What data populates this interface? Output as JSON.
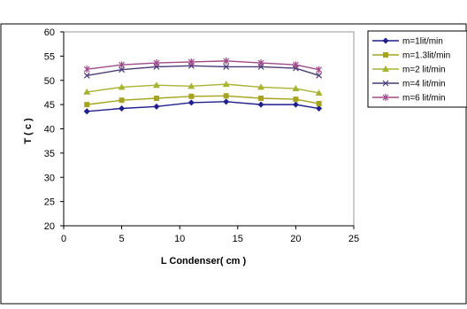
{
  "chart_data": {
    "type": "line",
    "title": "",
    "xlabel": "L  Condenser( cm )",
    "ylabel": "T ( c )",
    "xlim": [
      0,
      25
    ],
    "ylim": [
      20,
      60
    ],
    "x_ticks": [
      "0",
      "5",
      "10",
      "15",
      "20",
      "25"
    ],
    "y_ticks": [
      "20",
      "25",
      "30",
      "35",
      "40",
      "45",
      "50",
      "55",
      "60"
    ],
    "grid": false,
    "legend_position": "right",
    "x": [
      2,
      5,
      8,
      11,
      14,
      17,
      20,
      22
    ],
    "series": [
      {
        "name": "m=1lit/min",
        "color": "#1f1f8f",
        "marker": "diamond",
        "values": [
          43.6,
          44.2,
          44.6,
          45.4,
          45.6,
          45.0,
          45.0,
          44.2
        ]
      },
      {
        "name": "m=1.3lit/min",
        "color": "#a6a31e",
        "marker": "square",
        "values": [
          45.0,
          45.9,
          46.3,
          46.7,
          46.8,
          46.3,
          46.1,
          45.2
        ]
      },
      {
        "name": "m=2 lit/min",
        "color": "#a9b332",
        "marker": "triangle",
        "values": [
          47.6,
          48.6,
          49.0,
          48.8,
          49.2,
          48.6,
          48.3,
          47.4
        ]
      },
      {
        "name": "m=4 lit/min",
        "color": "#4a3a7a",
        "marker": "x",
        "values": [
          51.0,
          52.2,
          52.8,
          53.0,
          52.8,
          52.8,
          52.5,
          51.0
        ]
      },
      {
        "name": "m=6 lit/min",
        "color": "#a04a8a",
        "marker": "star",
        "values": [
          52.3,
          53.2,
          53.6,
          53.8,
          54.0,
          53.6,
          53.2,
          52.2
        ]
      }
    ]
  }
}
